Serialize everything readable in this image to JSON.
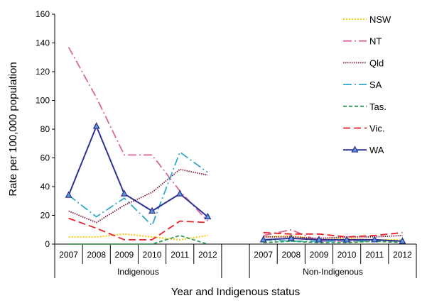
{
  "chart_data": {
    "type": "line",
    "xlabel": "Year and Indigenous status",
    "ylabel": "Rate per 100,000 population",
    "ylim": [
      0,
      160
    ],
    "yticks": [
      0,
      20,
      40,
      60,
      80,
      100,
      120,
      140,
      160
    ],
    "grid": false,
    "legend_position": "top-right",
    "groups": [
      {
        "label": "Indigenous",
        "categories": [
          "2007",
          "2008",
          "2009",
          "2010",
          "2011",
          "2012"
        ]
      },
      {
        "label": "Non-Indigenous",
        "categories": [
          "2007",
          "2008",
          "2009",
          "2010",
          "2011",
          "2012"
        ]
      }
    ],
    "series": [
      {
        "name": "NSW",
        "color": "#FFC000",
        "dash": "dotted",
        "marker": "none",
        "values": [
          [
            5,
            5,
            7,
            5,
            3,
            6
          ],
          [
            5,
            6,
            3,
            4,
            3,
            3
          ]
        ]
      },
      {
        "name": "NT",
        "color": "#D9659C",
        "dash": "dashdot",
        "marker": "none",
        "values": [
          [
            137,
            102,
            62,
            62,
            37,
            16
          ],
          [
            6,
            10,
            2,
            2,
            3,
            2
          ]
        ]
      },
      {
        "name": "Qld",
        "color": "#7B1538",
        "dash": "dotted-dense",
        "marker": "none",
        "values": [
          [
            23,
            15,
            27,
            36,
            52,
            48
          ],
          [
            5,
            5,
            4,
            5,
            5,
            6
          ]
        ]
      },
      {
        "name": "SA",
        "color": "#31A9C9",
        "dash": "dashdot",
        "marker": "none",
        "values": [
          [
            34,
            19,
            32,
            13,
            64,
            50
          ],
          [
            3,
            2,
            2,
            2,
            2,
            2
          ]
        ]
      },
      {
        "name": "Tas.",
        "color": "#2E9E4E",
        "dash": "dashed-short",
        "marker": "none",
        "values": [
          [
            0,
            0,
            0,
            0,
            6,
            0
          ],
          [
            1,
            2,
            1,
            1,
            2,
            1
          ]
        ]
      },
      {
        "name": "Vic.",
        "color": "#E8202A",
        "dash": "dashed-long",
        "marker": "none",
        "values": [
          [
            18,
            11,
            3,
            3,
            16,
            15
          ],
          [
            8,
            7,
            7,
            5,
            6,
            8
          ]
        ]
      },
      {
        "name": "WA",
        "color": "#2E3192",
        "dash": "solid",
        "marker": "triangle",
        "values": [
          [
            34,
            82,
            35,
            23,
            35,
            19
          ],
          [
            3,
            4,
            3,
            3,
            3,
            2
          ]
        ]
      }
    ]
  }
}
